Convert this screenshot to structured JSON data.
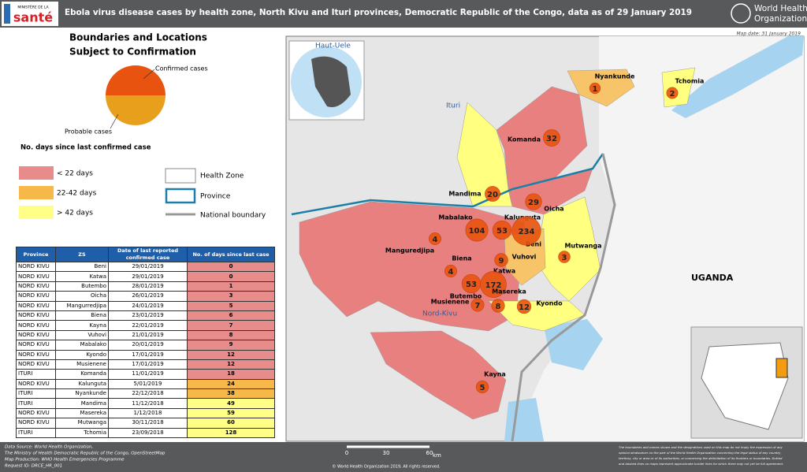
{
  "header": {
    "ministry": "MINISTÈRE DE LA",
    "sante": "santé",
    "title": "Ebola virus disease cases by health zone, North Kivu and Ituri provinces, Democratic Republic of the Congo, data as of 29 January 2019",
    "who": [
      "World Health",
      "Organization"
    ],
    "map_date": "Map date: 31 January 2019"
  },
  "legend": {
    "title": [
      "Boundaries and Locations",
      "Subject to Confirmation"
    ],
    "confirmed": "Confirmed cases",
    "probable": "Probable cases",
    "days_title": "No. days since last confirmed case",
    "days": [
      "< 22 days",
      "22-42 days",
      "> 42 days"
    ],
    "boundaries": [
      "Health Zone",
      "Province",
      "National boundary"
    ]
  },
  "table": {
    "columns": [
      "Province",
      "ZS",
      "Date of last reported confirmed case",
      "No. of days since last case"
    ],
    "rows": [
      [
        "NORD KIVU",
        "Beni",
        "29/01/2019",
        0
      ],
      [
        "NORD KIVU",
        "Katwa",
        "29/01/2019",
        0
      ],
      [
        "NORD KIVU",
        "Butembo",
        "28/01/2019",
        1
      ],
      [
        "NORD KIVU",
        "Oicha",
        "26/01/2019",
        3
      ],
      [
        "NORD KIVU",
        "Mangurredjipa",
        "24/01/2019",
        5
      ],
      [
        "NORD KIVU",
        "Biena",
        "23/01/2019",
        6
      ],
      [
        "NORD KIVU",
        "Kayna",
        "22/01/2019",
        7
      ],
      [
        "NORD KIVU",
        "Vuhovi",
        "21/01/2019",
        8
      ],
      [
        "NORD KIVU",
        "Mabalako",
        "20/01/2019",
        9
      ],
      [
        "NORD KIVU",
        "Kyondo",
        "17/01/2019",
        12
      ],
      [
        "NORD KIVU",
        "Musienene",
        "17/01/2019",
        12
      ],
      [
        "ITURI",
        "Komanda",
        "11/01/2019",
        18
      ],
      [
        "NORD KIVU",
        "Kalunguta",
        "5/01/2019",
        24
      ],
      [
        "ITURI",
        "Nyankunde",
        "22/12/2018",
        38
      ],
      [
        "ITURI",
        "Mandima",
        "11/12/2018",
        49
      ],
      [
        "NORD KIVU",
        "Masereka",
        "1/12/2018",
        59
      ],
      [
        "NORD KIVU",
        "Mutwanga",
        "30/11/2018",
        60
      ],
      [
        "ITURI",
        "Tchomia",
        "23/09/2018",
        128
      ]
    ]
  },
  "map": {
    "regions": [
      "Haut-Uele",
      "Ituri",
      "Nord-Kivu",
      "UGANDA"
    ],
    "zones": [
      {
        "name": "Nyankunde",
        "cases": 1
      },
      {
        "name": "Tchomia",
        "cases": 2
      },
      {
        "name": "Komanda",
        "cases": 32
      },
      {
        "name": "Mandima",
        "cases": 20
      },
      {
        "name": "Oicha",
        "cases": 29
      },
      {
        "name": "Mabalako",
        "cases": 104
      },
      {
        "name": "Kalunguta",
        "cases": 53
      },
      {
        "name": "Beni",
        "cases": 234
      },
      {
        "name": "Mutwanga",
        "cases": 3
      },
      {
        "name": "Manguredjipa",
        "cases": 4
      },
      {
        "name": "Biena",
        "cases": 4
      },
      {
        "name": "Vuhovi",
        "cases": 9
      },
      {
        "name": "Katwa",
        "cases": 172
      },
      {
        "name": "Butembo",
        "cases": 53
      },
      {
        "name": "Musienene",
        "cases": 7
      },
      {
        "name": "Masereka",
        "cases": 8
      },
      {
        "name": "Kyondo",
        "cases": 12
      },
      {
        "name": "Kayna",
        "cases": 5
      }
    ],
    "scale": {
      "ticks": [
        0,
        30,
        60
      ],
      "unit": "km"
    }
  },
  "footer": {
    "source": [
      "Data Source: World Health Organization,",
      "The Ministry of Health Democratic Republic of the Congo, OpenStreetMap",
      "Map Production: WHO Health Emergencies Programme",
      "Request ID: DRCE_HR_001"
    ],
    "copyright": "© World Health Organization 2019, All rights reserved.",
    "disclaimer": [
      "The boundaries and names shown and the designations used on this map do not imply the expression of any",
      "opinion whatsoever on the part of the World Health Organization concerning the legal status of any country,",
      "territory, city or area or of its authorities, or concerning the delimitation of its frontiers or boundaries. Dotted",
      "and dashed lines on maps represent approximate border lines for which there may not yet be full agreement."
    ]
  }
}
